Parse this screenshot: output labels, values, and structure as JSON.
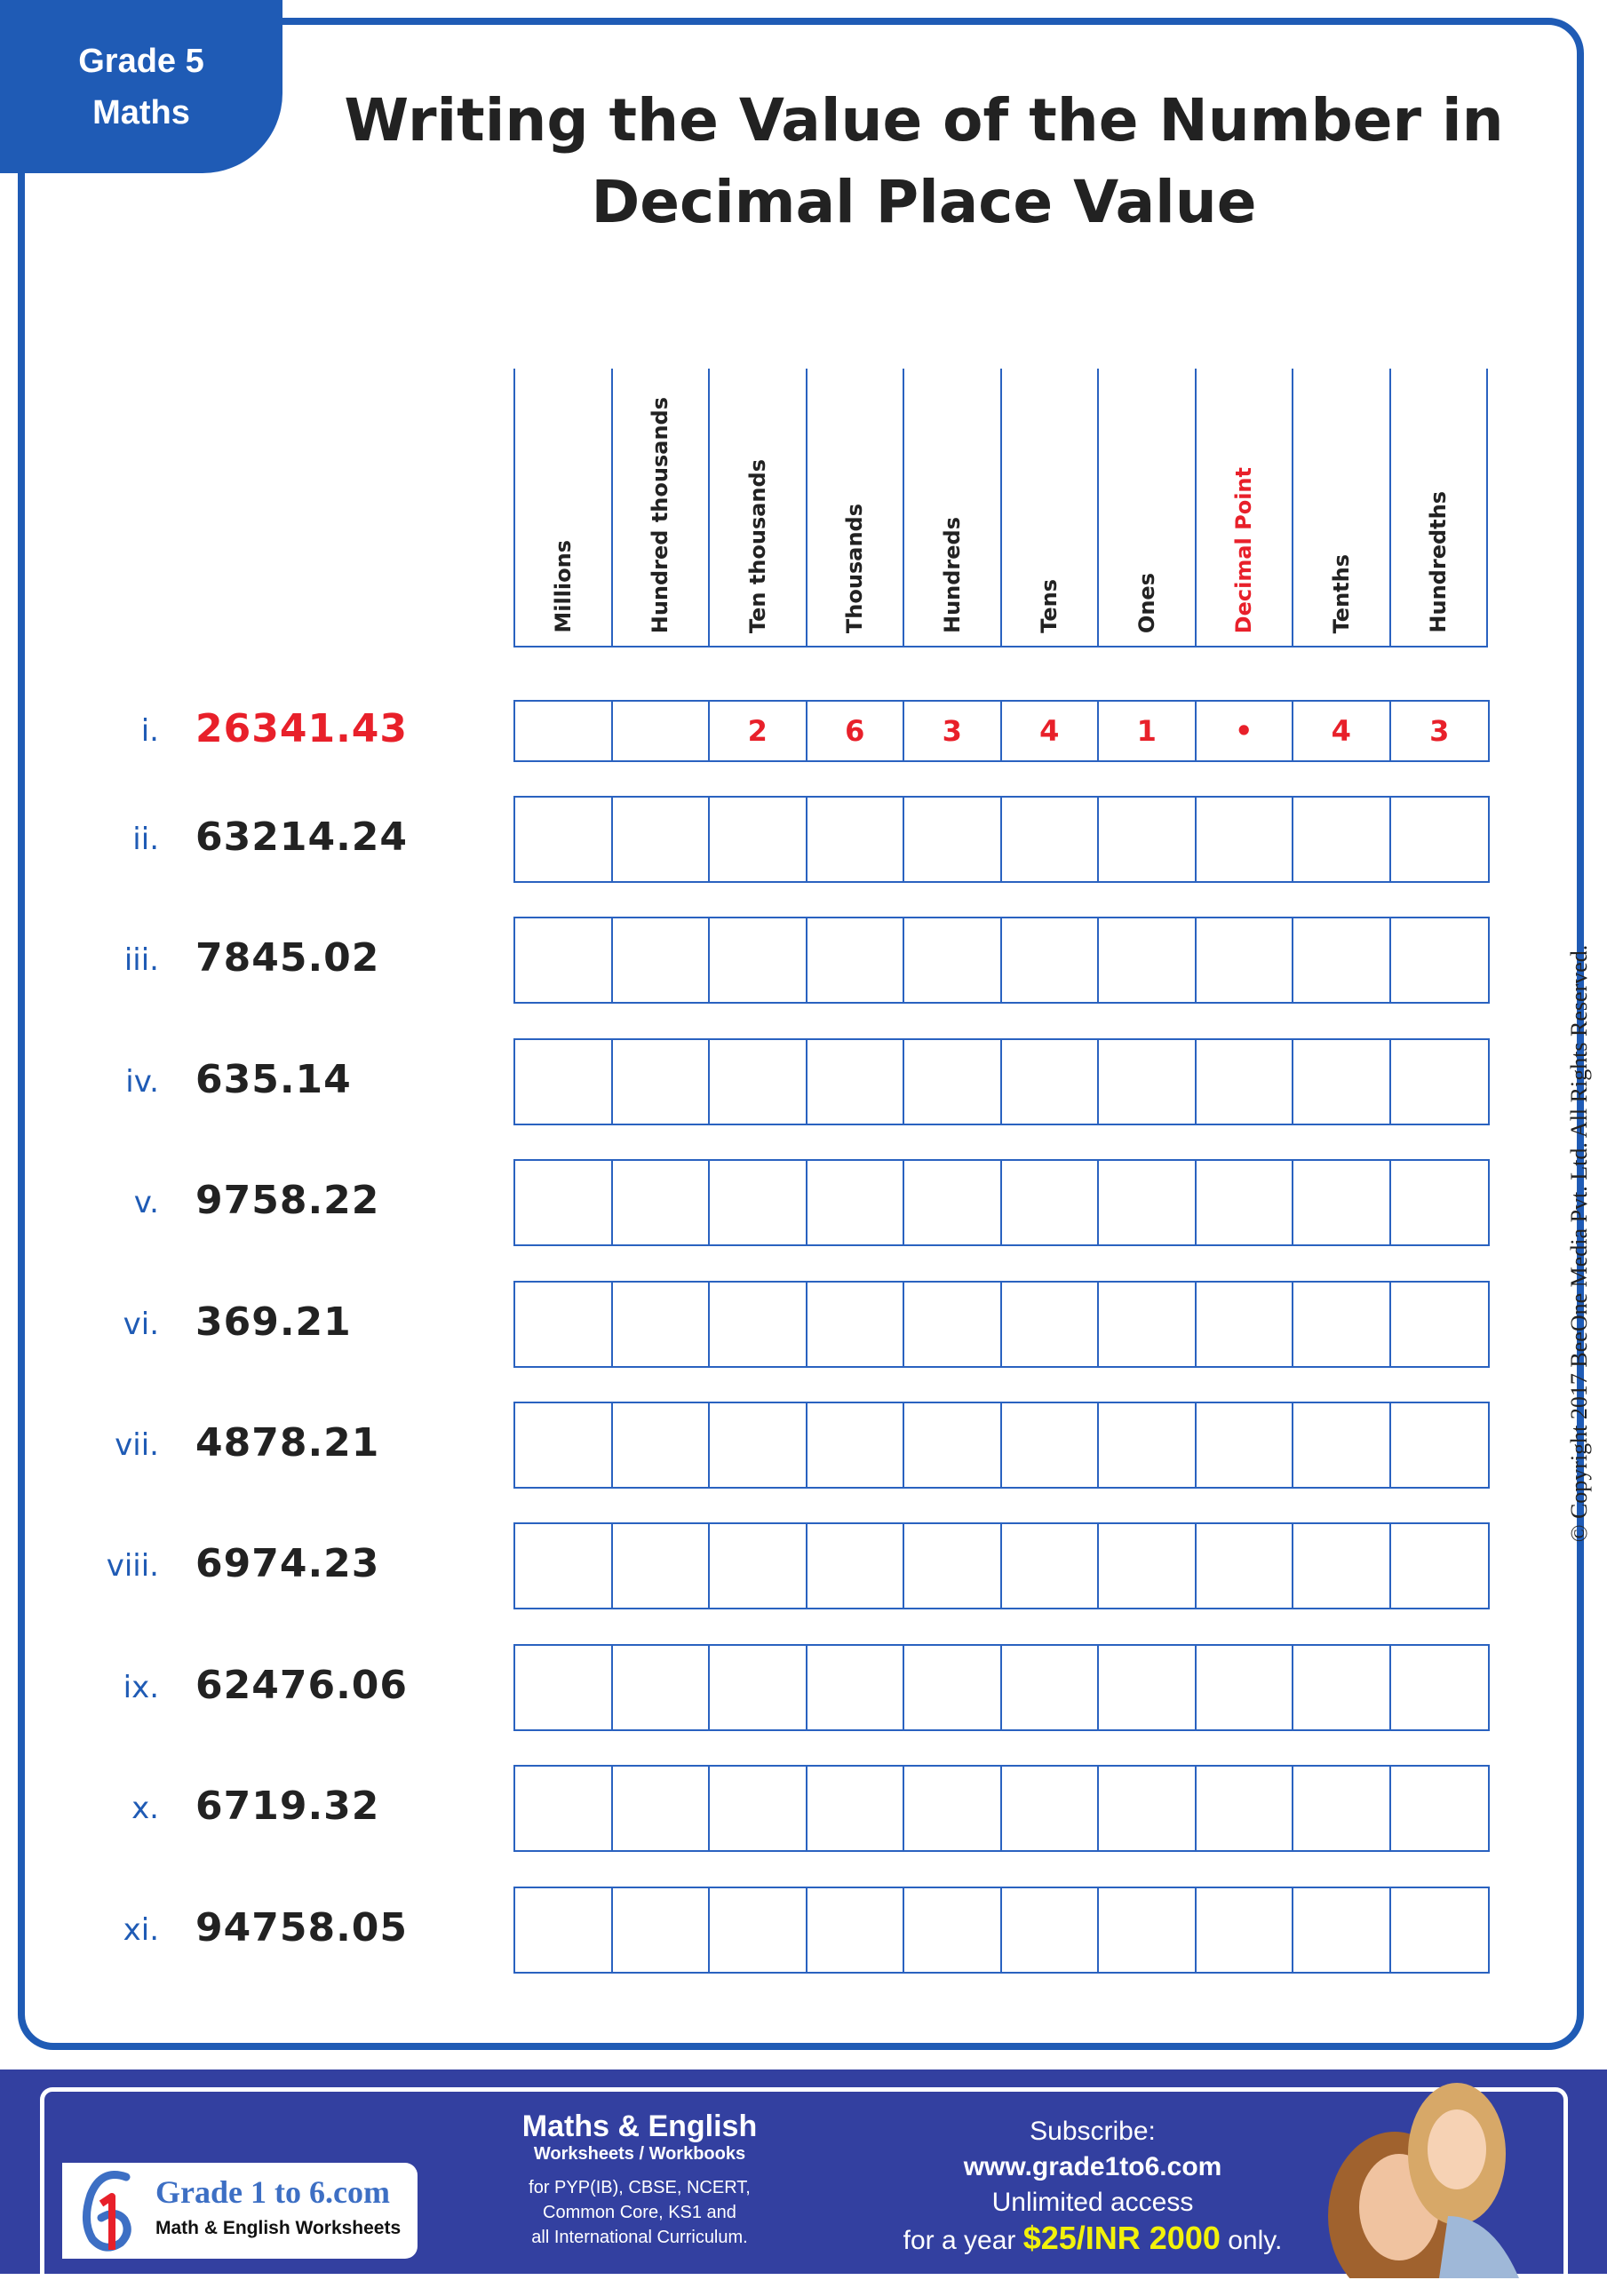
{
  "badge": {
    "line1": "Grade 5",
    "line2": "Maths"
  },
  "title": {
    "line1": "Writing the Value of the Number in",
    "line2": "Decimal Place Value"
  },
  "columns": [
    "Millions",
    "Hundred  thousands",
    "Ten  thousands",
    "Thousands",
    "Hundreds",
    "Tens",
    "Ones",
    "Decimal Point",
    "Tenths",
    "Hundredths"
  ],
  "highlight_column": "Decimal Point",
  "rows": [
    {
      "label": "i.",
      "number": "26341.43",
      "example": true,
      "cells": [
        "",
        "",
        "2",
        "6",
        "3",
        "4",
        "1",
        "•",
        "4",
        "3"
      ]
    },
    {
      "label": "ii.",
      "number": "63214.24"
    },
    {
      "label": "iii.",
      "number": "7845.02"
    },
    {
      "label": "iv.",
      "number": "635.14"
    },
    {
      "label": "v.",
      "number": "9758.22"
    },
    {
      "label": "vi.",
      "number": "369.21"
    },
    {
      "label": "vii.",
      "number": "4878.21"
    },
    {
      "label": "viii.",
      "number": "6974.23"
    },
    {
      "label": "ix.",
      "number": "62476.06"
    },
    {
      "label": "x.",
      "number": "6719.32"
    },
    {
      "label": "xi.",
      "number": "94758.05"
    }
  ],
  "copyright": "© Copyright 2017 BeeOne Media Pvt. Ltd. All Rights Reserved.",
  "footer": {
    "logo": {
      "title": "Grade 1 to 6.com",
      "subtitle": "Math & English Worksheets",
      "mark": "61"
    },
    "heading": "Maths & English",
    "subheading": "Worksheets / Workbooks",
    "curricula": [
      "for PYP(IB), CBSE, NCERT,",
      "Common Core, KS1 and",
      "all International Curriculum."
    ],
    "subscribe": "Subscribe:",
    "url": "www.grade1to6.com",
    "access": "Unlimited access",
    "price_prefix": "for a year ",
    "price": "$25/INR 2000",
    "price_suffix": " only."
  },
  "colors": {
    "accent": "#1f5bb5",
    "red": "#e8202a",
    "footer": "#3340a0",
    "price": "#f2f20a"
  }
}
